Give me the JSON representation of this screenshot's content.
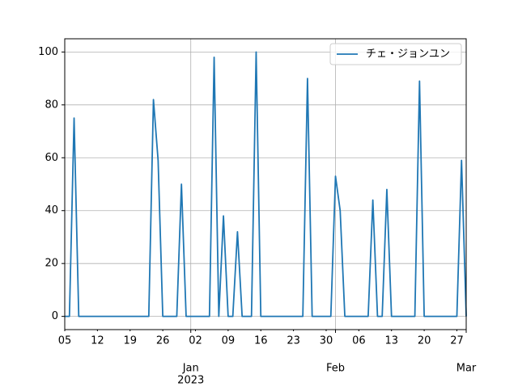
{
  "chart_data": {
    "type": "line",
    "x": [
      "2022-12-05",
      "2022-12-06",
      "2022-12-07",
      "2022-12-08",
      "2022-12-09",
      "2022-12-10",
      "2022-12-11",
      "2022-12-12",
      "2022-12-13",
      "2022-12-14",
      "2022-12-15",
      "2022-12-16",
      "2022-12-17",
      "2022-12-18",
      "2022-12-19",
      "2022-12-20",
      "2022-12-21",
      "2022-12-22",
      "2022-12-23",
      "2022-12-24",
      "2022-12-25",
      "2022-12-26",
      "2022-12-27",
      "2022-12-28",
      "2022-12-29",
      "2022-12-30",
      "2022-12-31",
      "2023-01-01",
      "2023-01-02",
      "2023-01-03",
      "2023-01-04",
      "2023-01-05",
      "2023-01-06",
      "2023-01-07",
      "2023-01-08",
      "2023-01-09",
      "2023-01-10",
      "2023-01-11",
      "2023-01-12",
      "2023-01-13",
      "2023-01-14",
      "2023-01-15",
      "2023-01-16",
      "2023-01-17",
      "2023-01-18",
      "2023-01-19",
      "2023-01-20",
      "2023-01-21",
      "2023-01-22",
      "2023-01-23",
      "2023-01-24",
      "2023-01-25",
      "2023-01-26",
      "2023-01-27",
      "2023-01-28",
      "2023-01-29",
      "2023-01-30",
      "2023-01-31",
      "2023-02-01",
      "2023-02-02",
      "2023-02-03",
      "2023-02-04",
      "2023-02-05",
      "2023-02-06",
      "2023-02-07",
      "2023-02-08",
      "2023-02-09",
      "2023-02-10",
      "2023-02-11",
      "2023-02-12",
      "2023-02-13",
      "2023-02-14",
      "2023-02-15",
      "2023-02-16",
      "2023-02-17",
      "2023-02-18",
      "2023-02-19",
      "2023-02-20",
      "2023-02-21",
      "2023-02-22",
      "2023-02-23",
      "2023-02-24",
      "2023-02-25",
      "2023-02-26",
      "2023-02-27",
      "2023-02-28",
      "2023-03-01"
    ],
    "series": [
      {
        "name": "チェ・ジョンユン",
        "color": "#1f77b4",
        "values": [
          0,
          0,
          75,
          0,
          0,
          0,
          0,
          0,
          0,
          0,
          0,
          0,
          0,
          0,
          0,
          0,
          0,
          0,
          0,
          82,
          59,
          0,
          0,
          0,
          0,
          50,
          0,
          0,
          0,
          0,
          0,
          0,
          98,
          0,
          38,
          0,
          0,
          32,
          0,
          0,
          0,
          100,
          0,
          0,
          0,
          0,
          0,
          0,
          0,
          0,
          0,
          0,
          90,
          0,
          0,
          0,
          0,
          0,
          53,
          40,
          0,
          0,
          0,
          0,
          0,
          0,
          44,
          0,
          0,
          48,
          0,
          0,
          0,
          0,
          0,
          0,
          89,
          0,
          0,
          0,
          0,
          0,
          0,
          0,
          0,
          59,
          0
        ]
      }
    ],
    "xlim": [
      "2022-12-05",
      "2023-03-01"
    ],
    "xticks": [
      {
        "value": "2023-01-01",
        "label": [
          "Jan",
          "2023"
        ]
      },
      {
        "value": "2023-02-01",
        "label": [
          "Feb"
        ]
      },
      {
        "value": "2023-03-01",
        "label": [
          "Mar"
        ]
      }
    ],
    "xminorticks": [
      {
        "value": "2022-12-05",
        "label": "05"
      },
      {
        "value": "2022-12-12",
        "label": "12"
      },
      {
        "value": "2022-12-19",
        "label": "19"
      },
      {
        "value": "2022-12-26",
        "label": "26"
      },
      {
        "value": "2023-01-02",
        "label": "02"
      },
      {
        "value": "2023-01-09",
        "label": "09"
      },
      {
        "value": "2023-01-16",
        "label": "16"
      },
      {
        "value": "2023-01-23",
        "label": "23"
      },
      {
        "value": "2023-01-30",
        "label": "30"
      },
      {
        "value": "2023-02-06",
        "label": "06"
      },
      {
        "value": "2023-02-13",
        "label": "13"
      },
      {
        "value": "2023-02-20",
        "label": "20"
      },
      {
        "value": "2023-02-27",
        "label": "27"
      }
    ],
    "ylim": [
      -5,
      105
    ],
    "yticks": [
      0,
      20,
      40,
      60,
      80,
      100
    ],
    "grid": true,
    "legend": "upper right"
  }
}
